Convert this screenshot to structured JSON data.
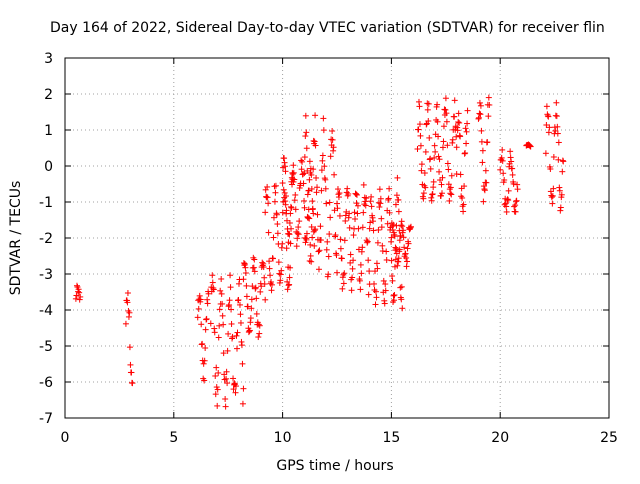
{
  "chart_data": {
    "type": "scatter",
    "title": "Day 164 of 2022, Sidereal Day-to-day VTEC variation (SDTVAR) for receiver flin",
    "xlabel": "GPS time / hours",
    "ylabel": "SDTVAR / TECUs",
    "xlim": [
      0,
      25
    ],
    "ylim": [
      -7,
      3
    ],
    "xticks": [
      0,
      5,
      10,
      15,
      20,
      25
    ],
    "yticks": [
      -7,
      -6,
      -5,
      -4,
      -3,
      -2,
      -1,
      0,
      1,
      2,
      3
    ],
    "grid": true,
    "marker": "+",
    "marker_color": "#ff0000",
    "series": [
      {
        "name": "SDTVAR",
        "clusters": [
          {
            "x": [
              0.5,
              0.7
            ],
            "y": [
              -4.2,
              -3.3
            ]
          },
          {
            "x": [
              2.8,
              3.1
            ],
            "y": [
              -6.5,
              -3.3
            ]
          },
          {
            "x": [
              6.1,
              6.6
            ],
            "y": [
              -6.0,
              -3.3
            ]
          },
          {
            "x": [
              6.7,
              8.2
            ],
            "y": [
              -6.7,
              -2.9
            ]
          },
          {
            "x": [
              8.2,
              9.2
            ],
            "y": [
              -5.0,
              -2.3
            ]
          },
          {
            "x": [
              9.2,
              10.5
            ],
            "y": [
              -3.7,
              -0.3
            ]
          },
          {
            "x": [
              10.0,
              11.5
            ],
            "y": [
              -2.3,
              0.3
            ]
          },
          {
            "x": [
              11.0,
              12.5
            ],
            "y": [
              -3.2,
              1.5
            ]
          },
          {
            "x": [
              12.5,
              14.0
            ],
            "y": [
              -3.6,
              -0.3
            ]
          },
          {
            "x": [
              14.0,
              15.5
            ],
            "y": [
              -4.0,
              -0.3
            ]
          },
          {
            "x": [
              15.0,
              15.9
            ],
            "y": [
              -2.8,
              -1.5
            ]
          },
          {
            "x": [
              16.2,
              18.0
            ],
            "y": [
              -1.3,
              1.9
            ]
          },
          {
            "x": [
              18.0,
              18.5
            ],
            "y": [
              -1.3,
              1.7
            ]
          },
          {
            "x": [
              19.0,
              19.5
            ],
            "y": [
              -1.3,
              2.2
            ]
          },
          {
            "x": [
              20.0,
              20.8
            ],
            "y": [
              -1.5,
              0.6
            ]
          },
          {
            "x": [
              21.2,
              21.4
            ],
            "y": [
              0.5,
              0.6
            ]
          },
          {
            "x": [
              22.1,
              22.9
            ],
            "y": [
              -1.3,
              1.9
            ]
          }
        ]
      }
    ]
  }
}
